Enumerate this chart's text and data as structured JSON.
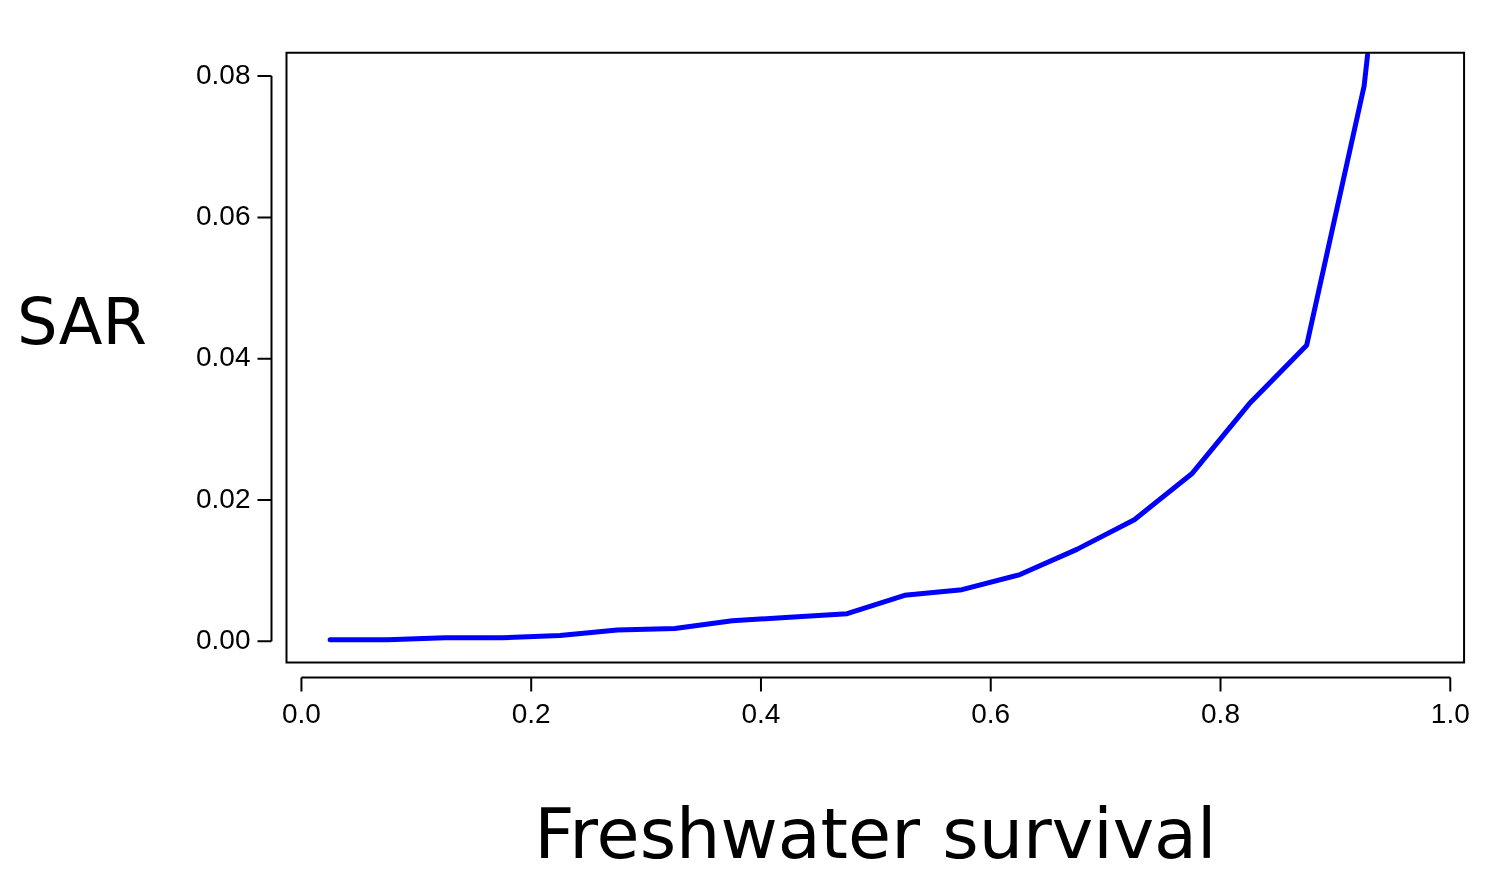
{
  "chart_data": {
    "type": "line",
    "xlabel": "Freshwater survival",
    "ylabel": "SAR",
    "x": [
      0.025,
      0.075,
      0.125,
      0.175,
      0.225,
      0.275,
      0.325,
      0.375,
      0.425,
      0.475,
      0.525,
      0.575,
      0.625,
      0.675,
      0.725,
      0.775,
      0.825,
      0.875,
      0.925,
      0.928
    ],
    "series": [
      {
        "color": "#0000ff",
        "values": [
          0.0002,
          0.0002,
          0.0005,
          0.0005,
          0.0008,
          0.0016,
          0.0018,
          0.0029,
          0.0034,
          0.0039,
          0.0065,
          0.0073,
          0.0094,
          0.013,
          0.0172,
          0.0237,
          0.0336,
          0.0419,
          0.0786,
          0.083
        ]
      }
    ],
    "xlim": [
      -0.013,
      1.012
    ],
    "ylim": [
      -0.003,
      0.0833
    ],
    "xticks": [
      {
        "value": 0,
        "label": "0.0"
      },
      {
        "value": 0.2,
        "label": "0.2"
      },
      {
        "value": 0.4,
        "label": "0.4"
      },
      {
        "value": 0.6,
        "label": "0.6"
      },
      {
        "value": 0.8,
        "label": "0.8"
      },
      {
        "value": 1,
        "label": "1.0"
      }
    ],
    "yticks": [
      {
        "value": 0,
        "label": "0.00"
      },
      {
        "value": 0.02,
        "label": "0.02"
      },
      {
        "value": 0.04,
        "label": "0.04"
      },
      {
        "value": 0.06,
        "label": "0.06"
      },
      {
        "value": 0.08,
        "label": "0.08"
      }
    ],
    "grid": false,
    "legend": false,
    "marker": "none",
    "line_style": "solid"
  }
}
